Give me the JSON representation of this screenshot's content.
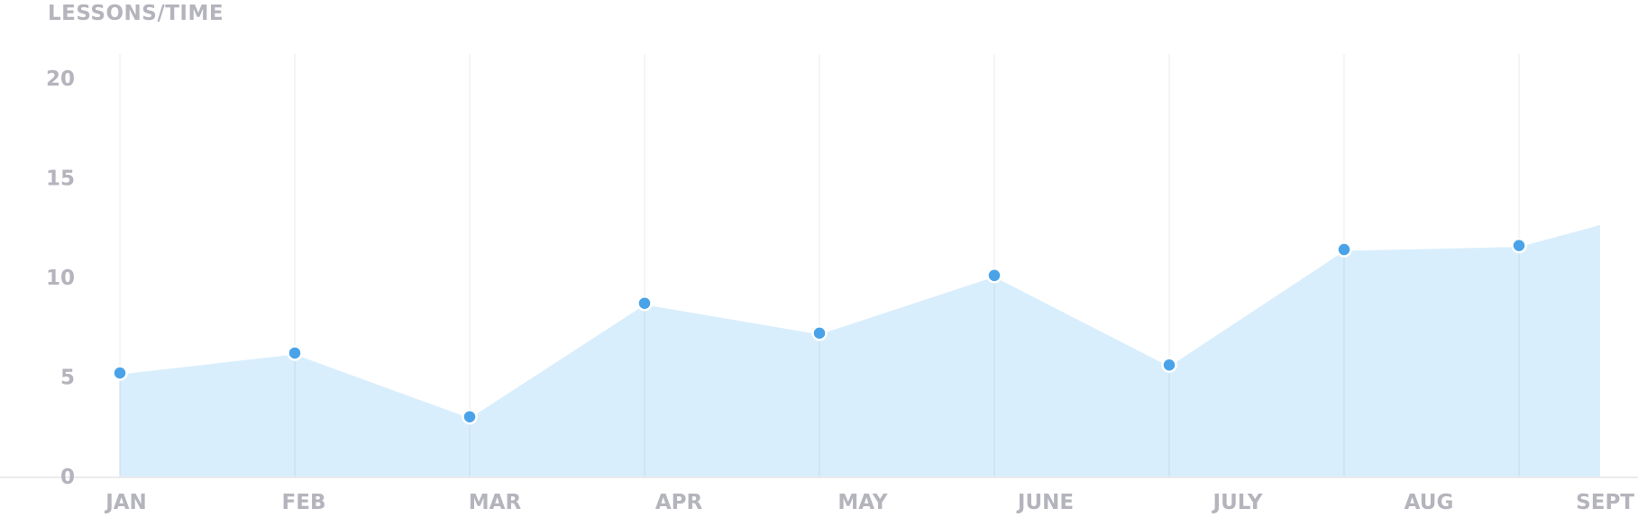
{
  "chart_data": {
    "type": "area",
    "title": "LESSONS/TIME",
    "categories": [
      "JAN",
      "FEB",
      "MAR",
      "APR",
      "MAY",
      "JUNE",
      "JULY",
      "AUG",
      "SEPT"
    ],
    "series": [
      {
        "values": [
          5.2,
          6.2,
          3.0,
          8.7,
          7.2,
          10.1,
          5.6,
          11.4,
          11.6
        ],
        "end_value": 12.7
      }
    ],
    "ylim": [
      0,
      20
    ],
    "yticks": [
      0,
      5,
      10,
      15,
      20
    ],
    "grid": "vertical",
    "colors": {
      "line": "#ffffff",
      "fill": "#d9eefc",
      "marker": "#4aa3e8",
      "marker_stroke": "#ffffff",
      "grid": "#ebebef",
      "label": "#b4b4bd"
    }
  }
}
